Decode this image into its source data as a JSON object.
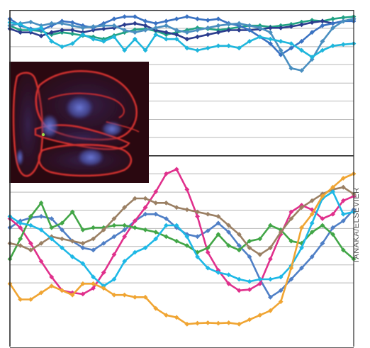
{
  "credit": "TANAKA/ELSEVIER",
  "colors": {
    "frame": "#2a2a2a",
    "grid": "#b8b8b8",
    "micrograph_bg": "#2a0810",
    "membrane": "#d0302e",
    "nucleus": "#5868c8",
    "dot": "#9adc4a"
  },
  "icons": [
    "fluorescence-micrograph-inset"
  ],
  "traces": [
    {
      "color": "#4f7fc6",
      "values": [
        46.5,
        48,
        48.7,
        49,
        48.5,
        46,
        43.5,
        42,
        41.5,
        43,
        44.5,
        46,
        48,
        49.5,
        49.5,
        48.5,
        46.5,
        45,
        44.5,
        45.8,
        47.5,
        45.5,
        42.5,
        40,
        35,
        31,
        32.5,
        35,
        37.5,
        40,
        43,
        46.5,
        48,
        50.5
      ]
    },
    {
      "color": "#e0308c",
      "values": [
        48.5,
        46.5,
        43,
        39,
        35.5,
        32.5,
        32,
        31.7,
        33,
        36.5,
        40.5,
        44.5,
        48,
        51,
        54.5,
        58.5,
        59.5,
        55,
        49,
        41,
        37,
        34,
        32.5,
        32.7,
        34,
        39.5,
        45,
        50,
        51.5,
        50.5,
        48.5,
        49.5,
        52.5,
        53.5
      ]
    },
    {
      "color": "#21a284",
      "values": [
        91.5,
        90.5,
        90.5,
        90.3,
        89.5,
        90,
        89.7,
        89.3,
        89,
        88.5,
        89.3,
        90,
        90.6,
        90.8,
        90.3,
        89.5,
        90,
        90.5,
        91,
        90.8,
        90.5,
        90.8,
        91.2,
        91.5,
        91.5,
        91.2,
        91.5,
        91.8,
        92.3,
        92.7,
        92.5,
        93,
        93.3,
        93.5
      ]
    },
    {
      "color": "#2b3d8e",
      "values": [
        90.8,
        90,
        90,
        89.2,
        90,
        90.5,
        90.5,
        90,
        90.5,
        90.8,
        91,
        91.7,
        92,
        91.5,
        90.5,
        90,
        89.5,
        88.5,
        89,
        89.5,
        90,
        90.5,
        90.5,
        90.5,
        90.7,
        91,
        91,
        91.3,
        91.7,
        92.2,
        92.5,
        92,
        92.5,
        93
      ]
    },
    {
      "color": "#3a72c2",
      "values": [
        93,
        91.5,
        90.8,
        90.5,
        91.5,
        92.5,
        92.2,
        91.5,
        91,
        92,
        93,
        93.5,
        93.5,
        92.5,
        92,
        92.5,
        93,
        93.5,
        93,
        92.7,
        93,
        92,
        91.5,
        90.5,
        89,
        87.5,
        85,
        86.5,
        88,
        90,
        91.5,
        92,
        92.5,
        92.5
      ]
    },
    {
      "color": "#4a8fc0",
      "values": [
        91.5,
        92,
        92.3,
        91.5,
        92,
        92,
        91.5,
        91,
        91.3,
        91.5,
        91.5,
        90.5,
        90,
        90.5,
        91,
        91.5,
        90.5,
        90,
        90.5,
        91,
        91.5,
        91.8,
        92,
        91.5,
        91,
        90,
        86,
        82,
        81.5,
        84,
        88,
        91,
        92.5,
        93
      ]
    },
    {
      "color": "#1fb6dc",
      "values": [
        92.2,
        91.8,
        90.5,
        91,
        88,
        86.8,
        87.5,
        89.5,
        88.5,
        88,
        89,
        86,
        88.5,
        86,
        89.5,
        88.5,
        88.5,
        86.5,
        86,
        86.5,
        87,
        87,
        86.5,
        88,
        89,
        88.5,
        88,
        87.5,
        86,
        84.5,
        86,
        87,
        87.3,
        87.5
      ]
    },
    {
      "color": "#42a647",
      "values": [
        39.5,
        44,
        49,
        52,
        46.5,
        47.5,
        50,
        46,
        46.5,
        46.5,
        47,
        47,
        46.5,
        46,
        45.5,
        44.5,
        43.5,
        42.5,
        41,
        42,
        45,
        42.5,
        41.5,
        43.5,
        44,
        47,
        46,
        43.5,
        43,
        45.5,
        47,
        45,
        41.5,
        39.5
      ]
    },
    {
      "color": "#9b8064",
      "values": [
        43,
        42.5,
        41.5,
        43,
        44.5,
        44,
        43.5,
        43,
        44,
        46,
        48.5,
        51,
        53,
        53,
        52,
        52,
        51,
        50.5,
        50,
        49.5,
        49,
        47,
        45,
        42,
        40.5,
        42,
        45.5,
        48.5,
        51,
        52.5,
        54,
        55,
        55.5,
        54
      ]
    },
    {
      "color": "#1eb8e6",
      "values": [
        49,
        47.5,
        47,
        46,
        44,
        42,
        40,
        38.5,
        35.5,
        33.5,
        35,
        39,
        41,
        42,
        44,
        47,
        47,
        44.5,
        40,
        37.5,
        36.5,
        36,
        35,
        34.5,
        35,
        35,
        35.5,
        38,
        42,
        47.5,
        53,
        54.5,
        49.5,
        50
      ]
    },
    {
      "color": "#f0a533",
      "values": [
        34,
        30.5,
        30.5,
        32,
        33.5,
        32.5,
        31.5,
        34,
        34,
        33,
        31.5,
        31.5,
        31,
        31,
        28.5,
        27,
        26.5,
        25,
        25.2,
        25.3,
        25.2,
        25.3,
        25,
        26,
        27,
        28,
        30,
        37.5,
        46.5,
        49.5,
        53.5,
        55.5,
        57.5,
        58.5
      ]
    }
  ],
  "x_samples": 34,
  "y_range": [
    20,
    95
  ],
  "ink_tiers": [
    {
      "y": 19.7,
      "class": "bottom-axis"
    },
    {
      "y": 34.2,
      "class": "gridline"
    },
    {
      "y": 38.2,
      "class": "gridline"
    },
    {
      "y": 42.3,
      "class": "gridline"
    },
    {
      "y": 46.3,
      "class": "gridline"
    },
    {
      "y": 50.4,
      "class": "gridline"
    },
    {
      "y": 54.4,
      "class": "gridline"
    },
    {
      "y": 58.5,
      "class": "gridline"
    },
    {
      "y": 62.5,
      "class": "divider"
    },
    {
      "y": 66.6,
      "class": "gridline"
    },
    {
      "y": 70.6,
      "class": "gridline"
    },
    {
      "y": 74.7,
      "class": "gridline"
    },
    {
      "y": 78.7,
      "class": "gridline"
    },
    {
      "y": 82.8,
      "class": "gridline"
    },
    {
      "y": 86.8,
      "class": "gridline"
    },
    {
      "y": 90.9,
      "class": "gridline"
    },
    {
      "y": 94.9,
      "class": "top-axis"
    }
  ]
}
